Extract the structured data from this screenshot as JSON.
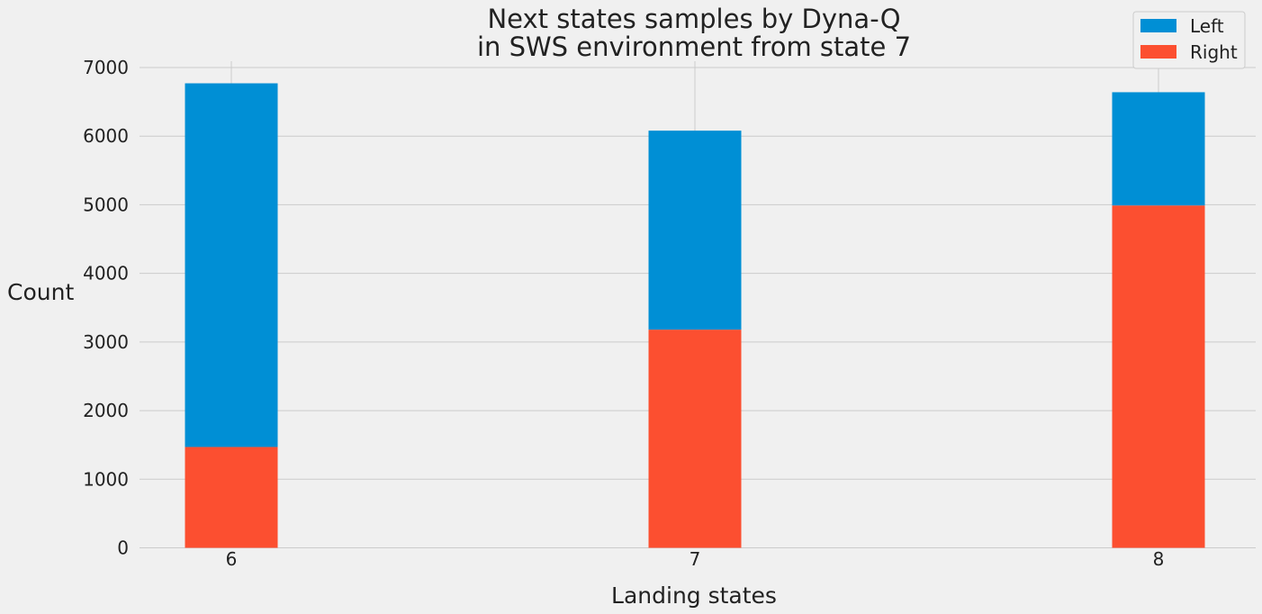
{
  "chart_data": {
    "type": "bar",
    "stacked": true,
    "title_lines": [
      "Next states samples by Dyna-Q",
      "in SWS environment from state 7"
    ],
    "xlabel": "Landing states",
    "ylabel": "Count",
    "categories": [
      "6",
      "7",
      "8"
    ],
    "series": [
      {
        "name": "Left",
        "color": "#008fd5",
        "values": [
          5300,
          2900,
          1650
        ]
      },
      {
        "name": "Right",
        "color": "#fc4f30",
        "values": [
          1470,
          3180,
          4990
        ]
      }
    ],
    "totals": [
      6770,
      6080,
      6640
    ],
    "ylim": [
      0,
      7000
    ],
    "yticks": [
      0,
      1000,
      2000,
      3000,
      4000,
      5000,
      6000,
      7000
    ],
    "grid": true,
    "legend_position": "top-right"
  }
}
